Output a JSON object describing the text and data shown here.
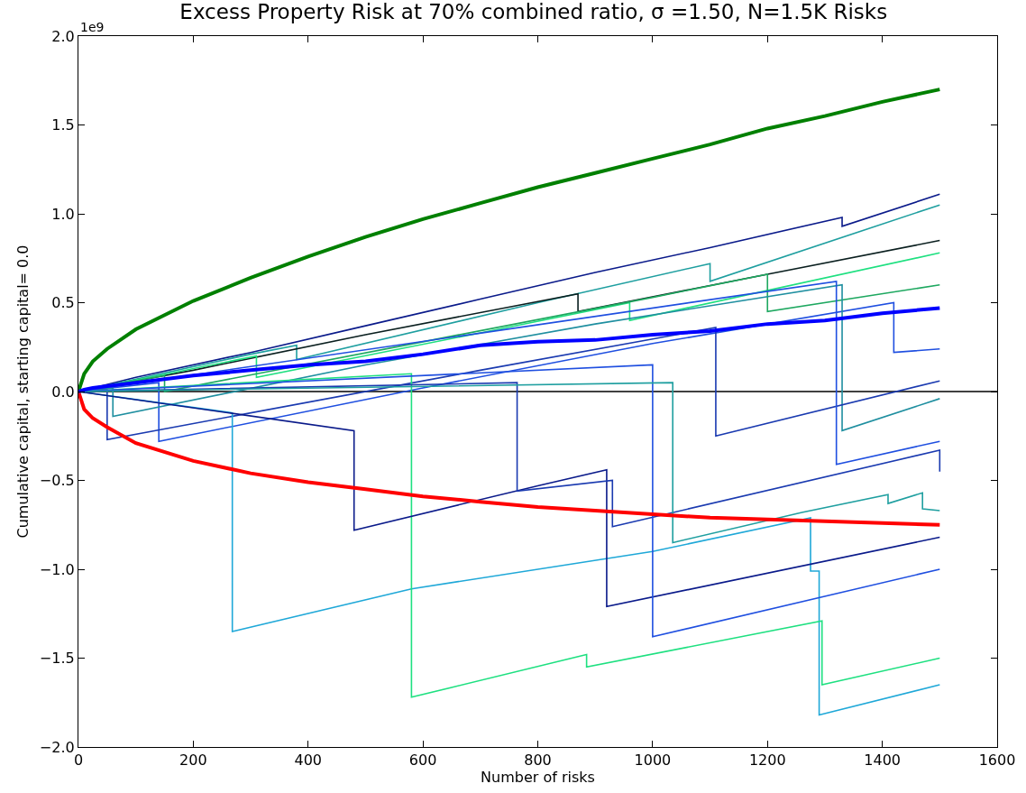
{
  "chart_data": {
    "type": "line",
    "title": "Excess Property Risk at 70% combined ratio, σ =1.50, N=1.5K Risks",
    "xlabel": "Number of risks",
    "ylabel": "Cumulative capital, starting capital= 0.0",
    "annotations": [
      "1e9"
    ],
    "xlim": [
      0,
      1600
    ],
    "xticks": [
      0,
      200,
      400,
      600,
      800,
      1000,
      1200,
      1400,
      1600
    ],
    "ylim": [
      -2.0,
      2.0
    ],
    "yticks": [
      {
        "value": -2.0,
        "label": "−2.0"
      },
      {
        "value": -1.5,
        "label": "−1.5"
      },
      {
        "value": -1.0,
        "label": "−1.0"
      },
      {
        "value": -0.5,
        "label": "−0.5"
      },
      {
        "value": 0.0,
        "label": "0.0"
      },
      {
        "value": 0.5,
        "label": "0.5"
      },
      {
        "value": 1.0,
        "label": "1.0"
      },
      {
        "value": 1.5,
        "label": "1.5"
      },
      {
        "value": 2.0,
        "label": "2.0"
      }
    ],
    "grid": false,
    "marker": "none",
    "line_style": "solid",
    "ref_lines": [
      {
        "axis": "y",
        "value": 0,
        "label": null,
        "color": "#000000"
      }
    ],
    "series": [
      {
        "color": "#0a1a8a",
        "x": [
          0,
          100,
          300,
          500,
          700,
          900,
          1100,
          1330,
          1330,
          1500
        ],
        "values": [
          0,
          0.08,
          0.22,
          0.37,
          0.52,
          0.67,
          0.81,
          0.98,
          0.93,
          1.11
        ]
      },
      {
        "color": "#1f9fa0",
        "x": [
          0,
          100,
          300,
          380,
          380,
          800,
          1100,
          1100,
          1500
        ],
        "values": [
          0,
          0.07,
          0.21,
          0.26,
          0.18,
          0.5,
          0.72,
          0.62,
          1.05
        ]
      },
      {
        "color": "#0a1f1f",
        "x": [
          0,
          200,
          500,
          870,
          870,
          1200,
          1500
        ],
        "values": [
          0,
          0.12,
          0.32,
          0.55,
          0.45,
          0.66,
          0.85
        ]
      },
      {
        "color": "#1ee080",
        "x": [
          0,
          310,
          310,
          700,
          960,
          960,
          1500
        ],
        "values": [
          0,
          0.2,
          0.08,
          0.33,
          0.5,
          0.4,
          0.78
        ]
      },
      {
        "color": "#1ea860",
        "x": [
          0,
          150,
          150,
          600,
          1000,
          1200,
          1200,
          1500
        ],
        "values": [
          0,
          0.09,
          0.0,
          0.28,
          0.53,
          0.66,
          0.45,
          0.6
        ]
      },
      {
        "color": "#1f4fe0",
        "x": [
          0,
          140,
          140,
          600,
          1000,
          1420,
          1420,
          1500
        ],
        "values": [
          0,
          0.05,
          -0.28,
          0.02,
          0.27,
          0.5,
          0.22,
          0.24
        ]
      },
      {
        "color": "#1f8fa0",
        "x": [
          0,
          60,
          60,
          500,
          900,
          1330,
          1330,
          1500
        ],
        "values": [
          0,
          0.02,
          -0.14,
          0.15,
          0.38,
          0.6,
          -0.22,
          -0.04
        ]
      },
      {
        "color": "#1a3ab0",
        "x": [
          0,
          50,
          50,
          700,
          1110,
          1110,
          1500
        ],
        "values": [
          0,
          0.01,
          -0.27,
          0.12,
          0.36,
          -0.25,
          0.06
        ]
      },
      {
        "color": "#1f4fe0",
        "x": [
          0,
          1320,
          1320,
          1500
        ],
        "values": [
          0,
          0.62,
          -0.41,
          -0.28
        ]
      },
      {
        "color": "#1fa8d8",
        "x": [
          0,
          268,
          268,
          580,
          1000,
          1275,
          1275,
          1290,
          1290,
          1500
        ],
        "values": [
          0,
          -0.12,
          -1.35,
          -1.11,
          -0.9,
          -0.71,
          -1.01,
          -1.01,
          -1.82,
          -1.65
        ]
      },
      {
        "color": "#1ee080",
        "x": [
          0,
          580,
          580,
          885,
          885,
          1295,
          1295,
          1500
        ],
        "values": [
          0,
          0.1,
          -1.72,
          -1.48,
          -1.55,
          -1.29,
          -1.65,
          -1.5
        ]
      },
      {
        "color": "#0a1a8a",
        "x": [
          0,
          480,
          480,
          800,
          920,
          920,
          1500
        ],
        "values": [
          0,
          -0.22,
          -0.78,
          -0.53,
          -0.44,
          -1.21,
          -0.82
        ]
      },
      {
        "color": "#1a3ab0",
        "x": [
          0,
          764,
          764,
          930,
          930,
          1500,
          1500
        ],
        "values": [
          0,
          0.05,
          -0.56,
          -0.5,
          -0.76,
          -0.33,
          -0.45
        ]
      },
      {
        "color": "#1f4fe0",
        "x": [
          0,
          1000,
          1000,
          1500
        ],
        "values": [
          0,
          0.15,
          -1.38,
          -1.0
        ]
      },
      {
        "color": "#1f9fa0",
        "x": [
          0,
          1035,
          1035,
          1260,
          1410,
          1410,
          1470,
          1470,
          1500
        ],
        "values": [
          0,
          0.05,
          -0.85,
          -0.68,
          -0.58,
          -0.63,
          -0.57,
          -0.66,
          -0.67
        ]
      },
      {
        "color": "#008000",
        "x": [
          0,
          10,
          25,
          50,
          100,
          200,
          300,
          400,
          500,
          600,
          700,
          800,
          900,
          1000,
          1100,
          1200,
          1300,
          1400,
          1500
        ],
        "values": [
          0,
          0.1,
          0.17,
          0.24,
          0.35,
          0.51,
          0.64,
          0.76,
          0.87,
          0.97,
          1.06,
          1.15,
          1.23,
          1.31,
          1.39,
          1.48,
          1.55,
          1.63,
          1.7
        ]
      },
      {
        "color": "#ff0000",
        "x": [
          0,
          10,
          25,
          50,
          100,
          200,
          300,
          400,
          500,
          600,
          700,
          800,
          900,
          1000,
          1100,
          1200,
          1300,
          1400,
          1500
        ],
        "values": [
          0,
          -0.1,
          -0.15,
          -0.2,
          -0.29,
          -0.39,
          -0.46,
          -0.51,
          -0.55,
          -0.59,
          -0.62,
          -0.65,
          -0.67,
          -0.69,
          -0.71,
          -0.72,
          -0.73,
          -0.74,
          -0.75
        ]
      },
      {
        "color": "#0000ff",
        "x": [
          0,
          10,
          25,
          50,
          100,
          200,
          300,
          400,
          500,
          600,
          700,
          800,
          900,
          1000,
          1100,
          1200,
          1300,
          1400,
          1500
        ],
        "values": [
          0,
          0.01,
          0.02,
          0.03,
          0.05,
          0.09,
          0.12,
          0.15,
          0.17,
          0.21,
          0.26,
          0.28,
          0.29,
          0.32,
          0.34,
          0.38,
          0.4,
          0.44,
          0.47
        ]
      }
    ]
  }
}
